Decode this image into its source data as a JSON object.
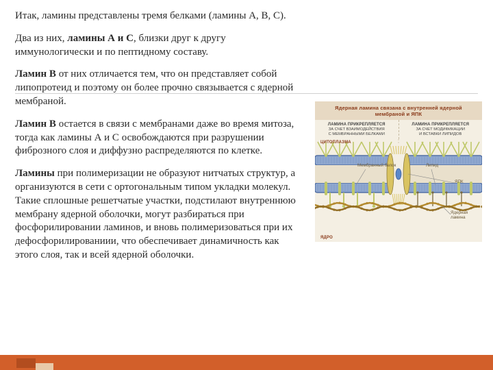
{
  "paragraphs": {
    "p1": "Итак, ламины представлены тремя белками (ламины A, B, C).",
    "p2_pre": "Два из них, ",
    "p2_bold": "ламины А и С",
    "p2_post": ", близки друг к другу иммунологически и по пептидному составу.",
    "p3_bold": "Ламин В",
    "p3_post": " от них отличается тем, что он представляет собой липопротеид и поэтому он более прочно связывается с ядерной мембраной.",
    "p4_bold": "Ламин В",
    "p4_post": " остается в связи с мембранами даже во время митоза, тогда как ламины А и С освобождаются при разрушении фиброзного слоя и диффузно распределяются по клетке.",
    "p5_bold": "Ламины",
    "p5_post": " при полимеризации не образуют нитчатых структур, а организуются в сети с ортогональным типом укладки молекул. Такие сплошные решетчатые участки, подстилают внутреннюю мембрану ядерной оболочки, могут разбираться при фосфорилировании ламинов, и вновь полимеризоваться при их дефосфорилированиии, что обеспечивает динамичность как этого слоя, так и всей ядерной оболочки."
  },
  "figure": {
    "title": "Ядерная ламина связана с внутренней ядерной мембраной и ЯПК",
    "cap_left_1": "ЛАМИНА ПРИКРЕПЛЯЕТСЯ",
    "cap_left_2": "ЗА СЧЕТ ВЗАИМОДЕЙСТВИЯ",
    "cap_left_3": "С МЕМБРАННЫМИ БЕЛКАМИ",
    "cap_right_1": "ЛАМИНА ПРИКРЕПЛЯЕТСЯ",
    "cap_right_2": "ЗА СЧЕТ МОДИФИКАЦИИ",
    "cap_right_3": "И ВСТАВКИ ЛИПИДОВ",
    "label_cyto": "ЦИТОПЛАЗМА",
    "label_nuc": "ЯДРО",
    "ann_memprot": "Мембранный белок",
    "ann_lipid": "Липид",
    "ann_ypk": "ЯПК",
    "ann_lamina1": "Ядерная",
    "ann_lamina2": "ламина",
    "colors": {
      "membrane_fill": "#8fa7cf",
      "membrane_edge": "#3f5f9a",
      "lamina_chain1": "#b48a2e",
      "lamina_chain2": "#947027",
      "protein_green": "#bfc86a",
      "pore_yellow": "#d9c361",
      "pore_core": "#5a88c9",
      "bg": "#f4efe3"
    },
    "membrane_y_outer": 24,
    "membrane_y_inner": 64,
    "membrane_thickness": 14,
    "lamina_y": 98
  },
  "footer_accent": "#d25f2a"
}
